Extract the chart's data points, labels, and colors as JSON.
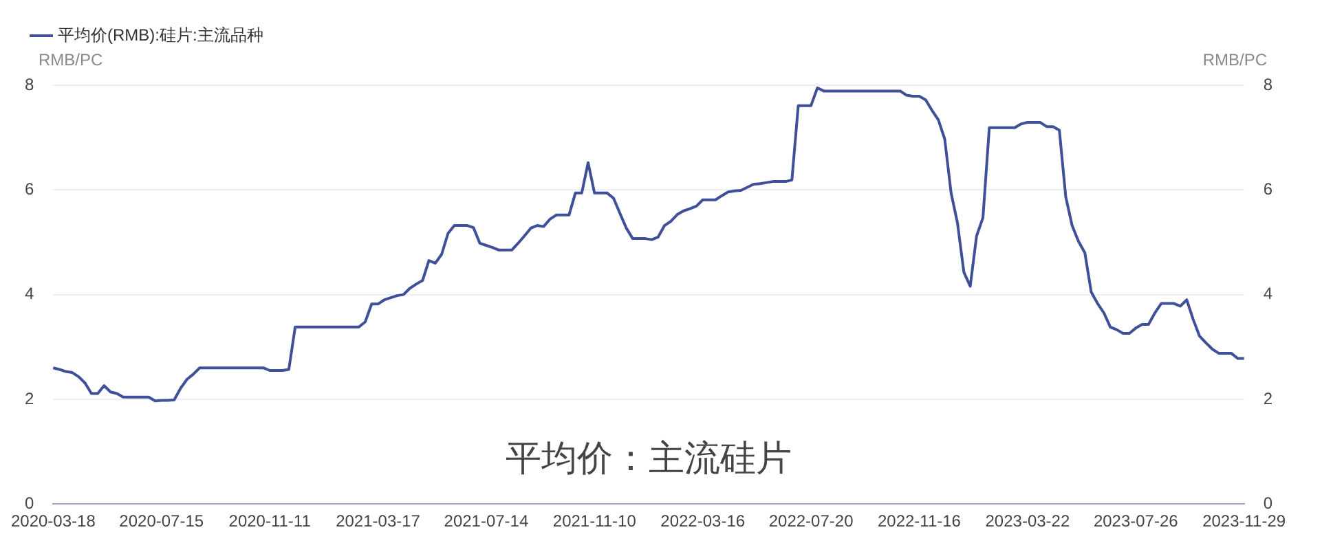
{
  "chart_data": {
    "type": "line",
    "ylabel": "RMB/PC",
    "y2label": "RMB/PC",
    "annotations": [
      "平均价：主流硅片"
    ],
    "categories": [
      "2020-03-18",
      null,
      null,
      null,
      null,
      null,
      null,
      null,
      null,
      null,
      null,
      null,
      null,
      null,
      null,
      null,
      null,
      "2020-07-15",
      null,
      null,
      null,
      null,
      null,
      null,
      null,
      null,
      null,
      null,
      null,
      null,
      null,
      null,
      null,
      null,
      "2020-11-11",
      null,
      null,
      null,
      null,
      null,
      null,
      null,
      null,
      null,
      null,
      null,
      null,
      null,
      null,
      null,
      null,
      "2021-03-17",
      null,
      null,
      null,
      null,
      null,
      null,
      null,
      null,
      null,
      null,
      null,
      null,
      null,
      null,
      null,
      null,
      "2021-07-14",
      null,
      null,
      null,
      null,
      null,
      null,
      null,
      null,
      null,
      null,
      null,
      null,
      null,
      null,
      null,
      null,
      "2021-11-10",
      null,
      null,
      null,
      null,
      null,
      null,
      null,
      null,
      null,
      null,
      null,
      null,
      null,
      null,
      null,
      null,
      "2022-03-16",
      null,
      null,
      null,
      null,
      null,
      null,
      null,
      null,
      null,
      null,
      null,
      null,
      null,
      null,
      null,
      null,
      "2022-07-20",
      null,
      null,
      null,
      null,
      null,
      null,
      null,
      null,
      null,
      null,
      null,
      null,
      null,
      null,
      null,
      null,
      "2022-11-16",
      null,
      null,
      null,
      null,
      null,
      null,
      null,
      null,
      null,
      null,
      null,
      null,
      null,
      null,
      null,
      null,
      "2023-03-22",
      null,
      null,
      null,
      null,
      null,
      null,
      null,
      null,
      null,
      null,
      null,
      null,
      null,
      null,
      null,
      null,
      "2023-07-26",
      null,
      null,
      null,
      null,
      null,
      null,
      null,
      null,
      null,
      null,
      null,
      null,
      null,
      null,
      null,
      null,
      "2023-11-29"
    ],
    "series": [
      {
        "name": "平均价(RMB):硅片:主流品种",
        "color": "#3f4f9a",
        "values": [
          2.6,
          2.57,
          2.53,
          2.51,
          2.43,
          2.31,
          2.11,
          2.11,
          2.26,
          2.14,
          2.11,
          2.04,
          2.04,
          2.04,
          2.04,
          2.04,
          1.97,
          1.98,
          1.98,
          1.99,
          2.21,
          2.38,
          2.48,
          2.6,
          2.6,
          2.6,
          2.6,
          2.6,
          2.6,
          2.6,
          2.6,
          2.6,
          2.6,
          2.6,
          2.55,
          2.55,
          2.55,
          2.57,
          3.38,
          3.38,
          3.38,
          3.38,
          3.38,
          3.38,
          3.38,
          3.38,
          3.38,
          3.38,
          3.38,
          3.48,
          3.82,
          3.82,
          3.9,
          3.94,
          3.98,
          4.0,
          4.12,
          4.2,
          4.27,
          4.65,
          4.6,
          4.77,
          5.17,
          5.32,
          5.32,
          5.32,
          5.28,
          4.98,
          4.94,
          4.9,
          4.85,
          4.85,
          4.85,
          4.98,
          5.12,
          5.27,
          5.32,
          5.3,
          5.44,
          5.52,
          5.52,
          5.52,
          5.94,
          5.94,
          6.52,
          5.94,
          5.94,
          5.94,
          5.84,
          5.55,
          5.27,
          5.07,
          5.07,
          5.07,
          5.05,
          5.1,
          5.32,
          5.4,
          5.53,
          5.6,
          5.64,
          5.69,
          5.81,
          5.81,
          5.81,
          5.89,
          5.96,
          5.98,
          5.99,
          6.05,
          6.11,
          6.12,
          6.14,
          6.16,
          6.16,
          6.16,
          6.19,
          7.61,
          7.61,
          7.61,
          7.95,
          7.89,
          7.89,
          7.89,
          7.89,
          7.89,
          7.89,
          7.89,
          7.89,
          7.89,
          7.89,
          7.89,
          7.89,
          7.89,
          7.81,
          7.79,
          7.79,
          7.72,
          7.52,
          7.34,
          6.97,
          5.94,
          5.37,
          4.43,
          4.16,
          5.12,
          5.47,
          7.19,
          7.19,
          7.19,
          7.19,
          7.19,
          7.26,
          7.29,
          7.29,
          7.29,
          7.21,
          7.21,
          7.14,
          5.87,
          5.32,
          5.02,
          4.8,
          4.05,
          3.83,
          3.65,
          3.38,
          3.33,
          3.26,
          3.26,
          3.36,
          3.43,
          3.43,
          3.65,
          3.83,
          3.83,
          3.83,
          3.78,
          3.9,
          3.53,
          3.21,
          3.08,
          2.96,
          2.88,
          2.88,
          2.88,
          2.78,
          2.78
        ]
      }
    ],
    "ylim": [
      0,
      8
    ],
    "yticks": [
      0,
      2,
      4,
      6,
      8
    ],
    "y2lim": [
      0,
      8
    ],
    "y2ticks": [
      0,
      2,
      4,
      6,
      8
    ],
    "grid": "y",
    "legend": "top left",
    "marker": "none",
    "line_style": "solid"
  }
}
